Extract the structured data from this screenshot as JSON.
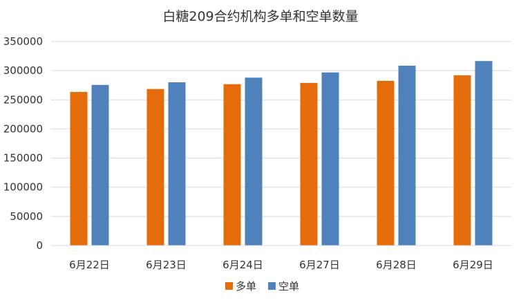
{
  "chart_data": {
    "type": "bar",
    "title": "白糖209合约机构多单和空单数量",
    "xlabel": "",
    "ylabel": "",
    "categories": [
      "6月22日",
      "6月23日",
      "6月24日",
      "6月27日",
      "6月28日",
      "6月29日"
    ],
    "series": [
      {
        "name": "多单",
        "color": "#E46C0A",
        "values": [
          263500,
          268500,
          276800,
          279000,
          282500,
          292000
        ]
      },
      {
        "name": "空单",
        "color": "#4F81BD",
        "values": [
          275500,
          280000,
          288000,
          297000,
          308500,
          316500
        ]
      }
    ],
    "ylim": [
      0,
      350000
    ],
    "yticks": [
      "0",
      "50000",
      "100000",
      "150000",
      "200000",
      "250000",
      "300000",
      "350000"
    ],
    "grid": true,
    "legend": "bottom"
  }
}
